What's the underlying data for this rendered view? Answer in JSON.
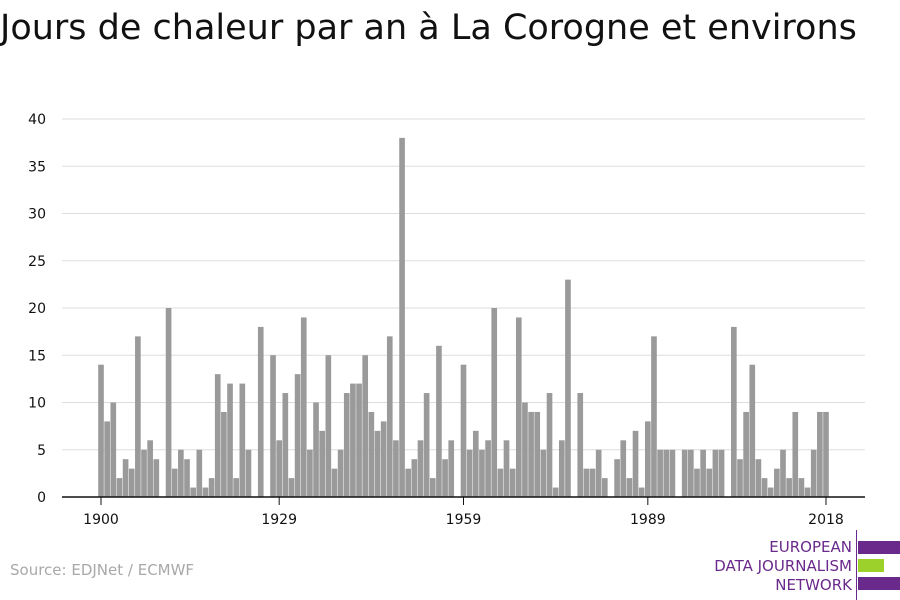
{
  "title": "Jours de chaleur par an à La Corogne et environs",
  "source": "Source: EDJNet / ECMWF",
  "logo": {
    "lines": [
      "EUROPEAN",
      "DATA JOURNALISM",
      "NETWORK"
    ],
    "purple": "#6a2a8c",
    "green": "#9bd12a"
  },
  "chart_data": {
    "type": "bar",
    "title": "Jours de chaleur par an à La Corogne et environs",
    "xlabel": "",
    "ylabel": "",
    "bar_color": "#9a9a9a",
    "grid": true,
    "ylim": [
      0,
      40
    ],
    "yticks": [
      0,
      5,
      10,
      15,
      20,
      25,
      30,
      35,
      40
    ],
    "xticks": [
      1900,
      1929,
      1959,
      1989,
      2018
    ],
    "x": [
      1900,
      1901,
      1902,
      1903,
      1904,
      1905,
      1906,
      1907,
      1908,
      1909,
      1910,
      1911,
      1912,
      1913,
      1914,
      1915,
      1916,
      1917,
      1918,
      1919,
      1920,
      1921,
      1922,
      1923,
      1924,
      1925,
      1926,
      1927,
      1928,
      1929,
      1930,
      1931,
      1932,
      1933,
      1934,
      1935,
      1936,
      1937,
      1938,
      1939,
      1940,
      1941,
      1942,
      1943,
      1944,
      1945,
      1946,
      1947,
      1948,
      1949,
      1950,
      1951,
      1952,
      1953,
      1954,
      1955,
      1956,
      1957,
      1958,
      1959,
      1960,
      1961,
      1962,
      1963,
      1964,
      1965,
      1966,
      1967,
      1968,
      1969,
      1970,
      1971,
      1972,
      1973,
      1974,
      1975,
      1976,
      1977,
      1978,
      1979,
      1980,
      1981,
      1982,
      1983,
      1984,
      1985,
      1986,
      1987,
      1988,
      1989,
      1990,
      1991,
      1992,
      1993,
      1994,
      1995,
      1996,
      1997,
      1998,
      1999,
      2000,
      2001,
      2002,
      2003,
      2004,
      2005,
      2006,
      2007,
      2008,
      2009,
      2010,
      2011,
      2012,
      2013,
      2014,
      2015,
      2016,
      2017,
      2018
    ],
    "values": [
      14,
      8,
      10,
      2,
      4,
      3,
      17,
      5,
      6,
      4,
      0,
      20,
      3,
      5,
      4,
      1,
      5,
      1,
      2,
      13,
      9,
      12,
      2,
      12,
      5,
      0,
      18,
      0,
      15,
      6,
      11,
      2,
      13,
      19,
      5,
      10,
      7,
      15,
      3,
      5,
      11,
      12,
      12,
      15,
      9,
      7,
      8,
      17,
      6,
      38,
      3,
      4,
      6,
      11,
      2,
      16,
      4,
      6,
      0,
      14,
      5,
      7,
      5,
      6,
      20,
      3,
      6,
      3,
      19,
      10,
      9,
      9,
      5,
      11,
      1,
      6,
      23,
      0,
      11,
      3,
      3,
      5,
      2,
      0,
      4,
      6,
      2,
      7,
      1,
      8,
      17,
      5,
      5,
      5,
      0,
      5,
      5,
      3,
      5,
      3,
      5,
      5,
      0,
      18,
      4,
      9,
      14,
      4,
      2,
      1,
      3,
      5,
      2,
      9,
      2,
      1,
      5,
      9,
      9
    ]
  }
}
